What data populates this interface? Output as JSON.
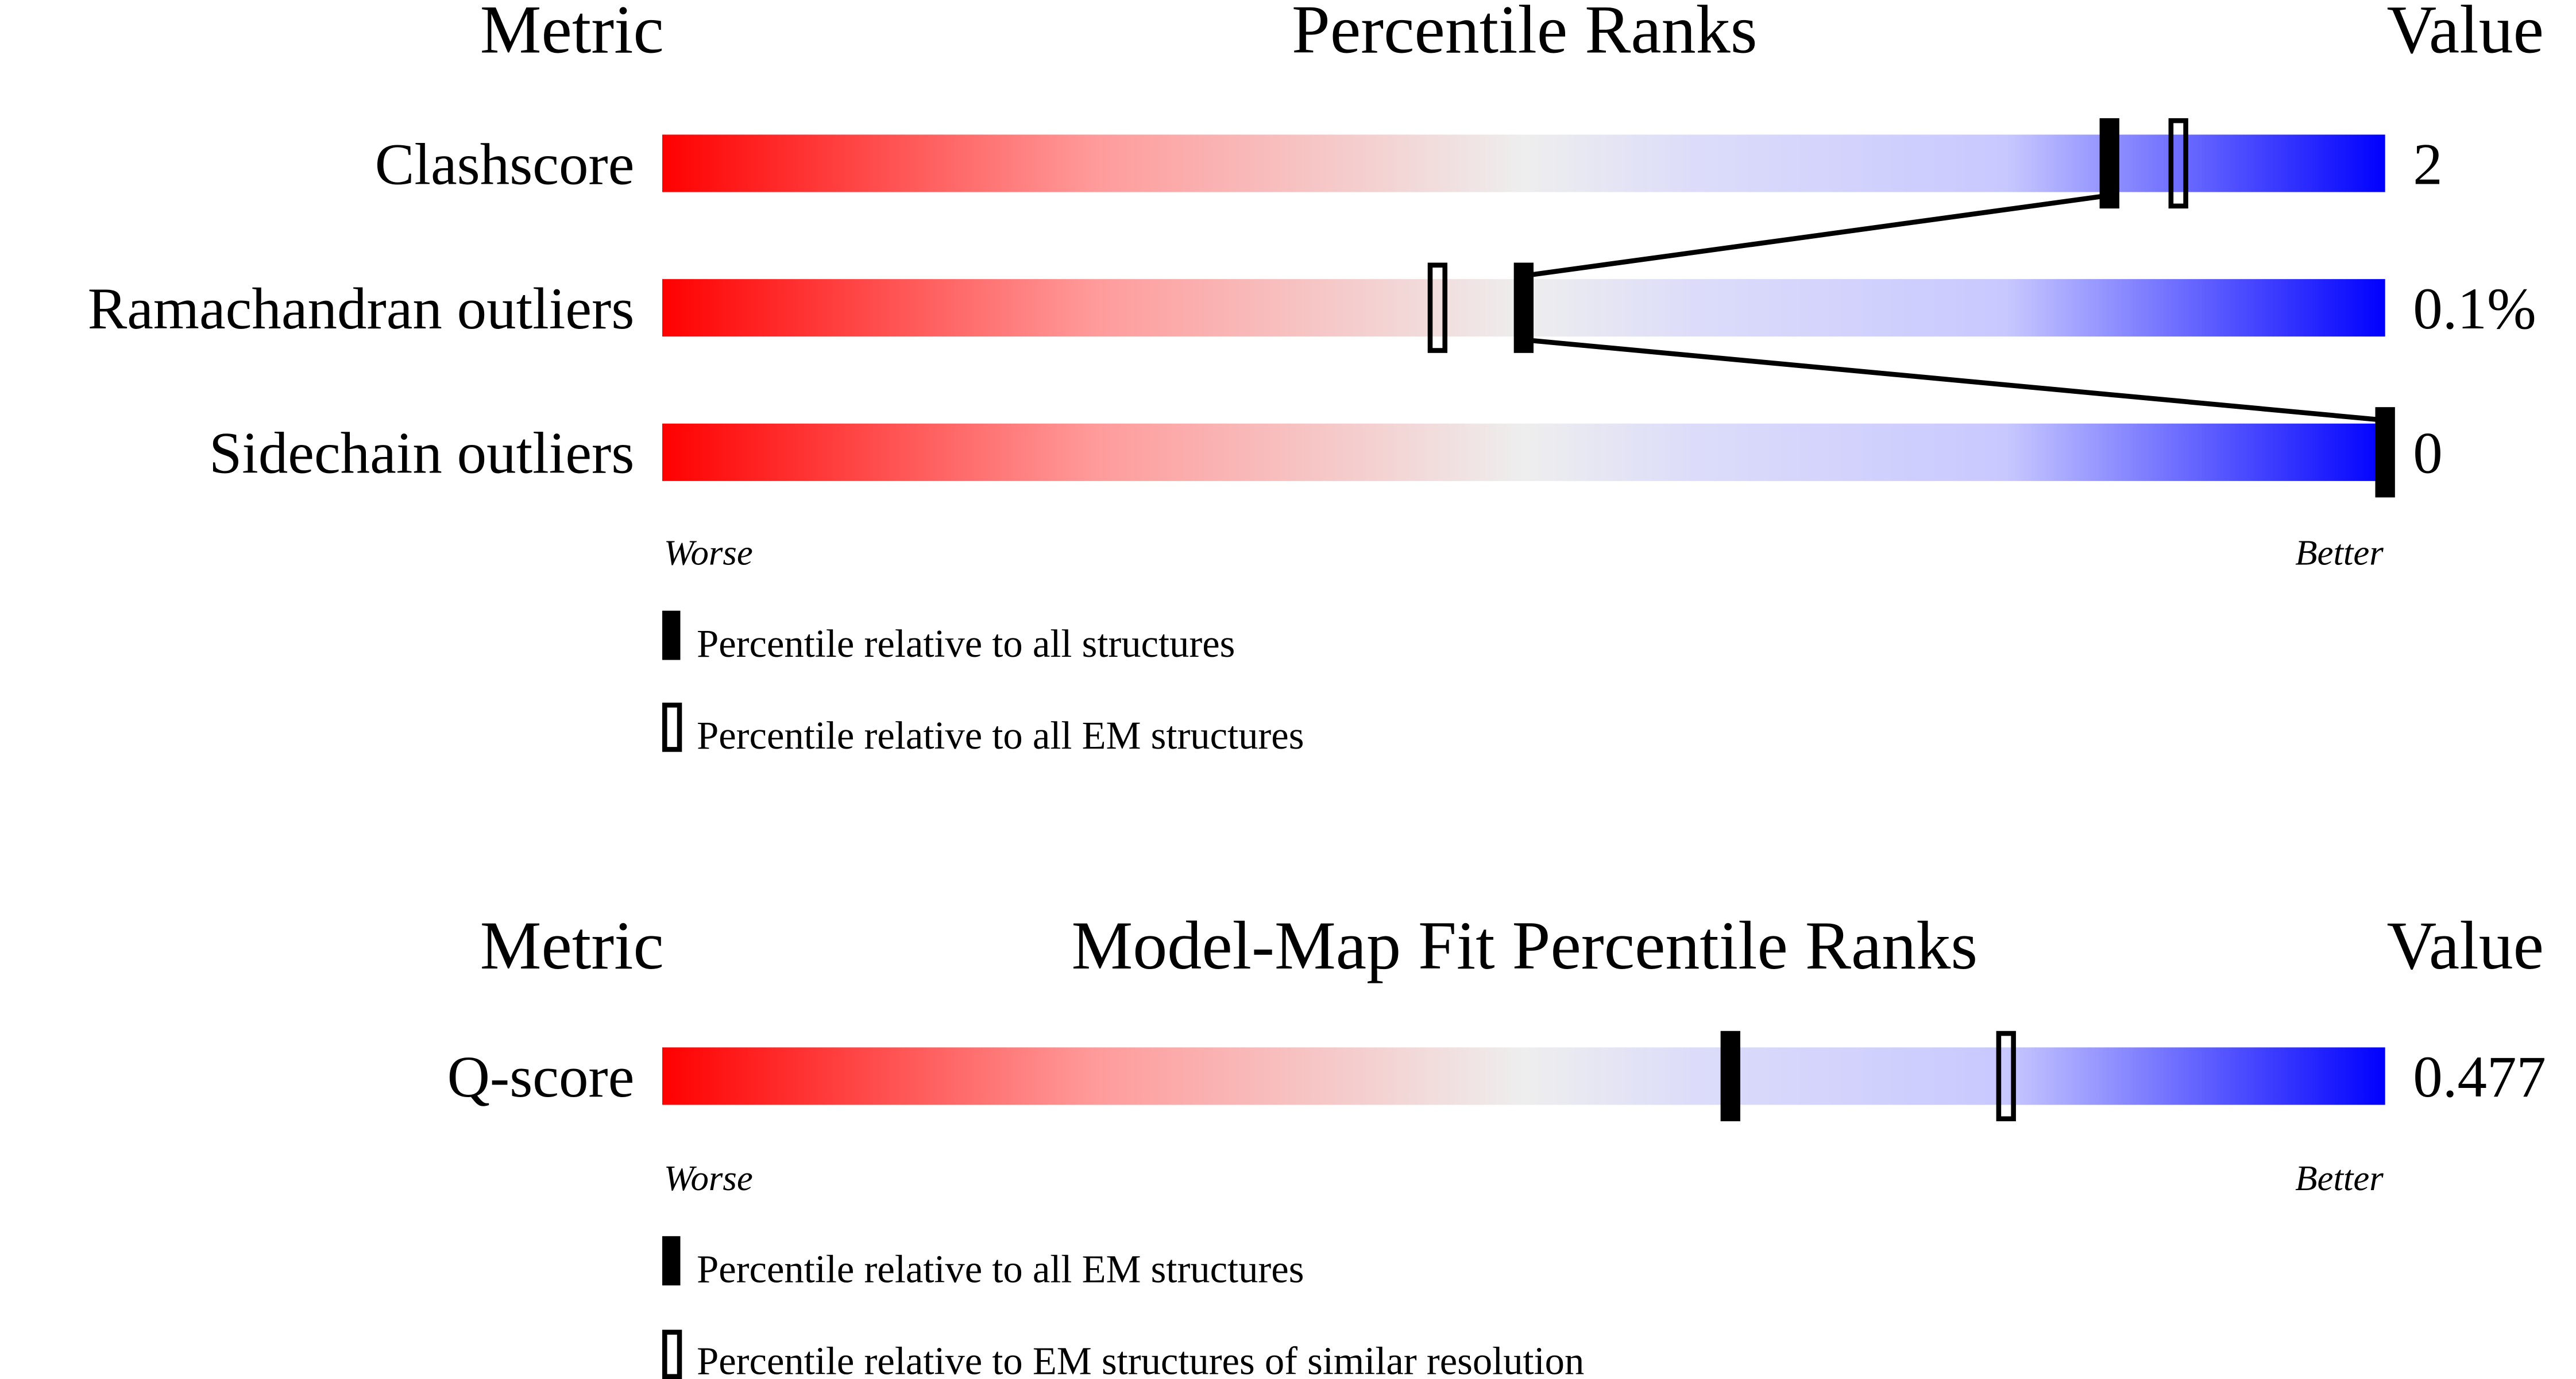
{
  "chart_data": [
    {
      "type": "percentile-slider",
      "header": {
        "metric": "Metric",
        "title": "Percentile Ranks",
        "value": "Value"
      },
      "xlim": [
        0,
        100
      ],
      "scale_labels": {
        "low": "Worse",
        "high": "Better"
      },
      "colors": {
        "worse": "#ff0000",
        "middle": "#eeeeee",
        "better": "#0000ff",
        "marker": "#000000"
      },
      "rows": [
        {
          "metric": "Clashscore",
          "value": "2",
          "percentile_all": 84,
          "percentile_em": 88
        },
        {
          "metric": "Ramachandran outliers",
          "value": "0.1%",
          "percentile_all": 50,
          "percentile_em": 45
        },
        {
          "metric": "Sidechain outliers",
          "value": "0",
          "percentile_all": 100,
          "percentile_em": null
        }
      ],
      "legend": [
        {
          "marker": "filled",
          "label": "Percentile relative to all structures"
        },
        {
          "marker": "open",
          "label": "Percentile relative to all EM structures"
        }
      ],
      "connect_filled_markers": true
    },
    {
      "type": "percentile-slider",
      "header": {
        "metric": "Metric",
        "title": "Model-Map Fit Percentile Ranks",
        "value": "Value"
      },
      "xlim": [
        0,
        100
      ],
      "scale_labels": {
        "low": "Worse",
        "high": "Better"
      },
      "colors": {
        "worse": "#ff0000",
        "middle": "#eeeeee",
        "better": "#0000ff",
        "marker": "#000000"
      },
      "rows": [
        {
          "metric": "Q-score",
          "value": "0.477",
          "percentile_all": 62,
          "percentile_em": 78
        }
      ],
      "legend": [
        {
          "marker": "filled",
          "label": "Percentile relative to all EM structures"
        },
        {
          "marker": "open",
          "label": "Percentile relative to EM structures of similar resolution"
        }
      ],
      "connect_filled_markers": false
    }
  ]
}
